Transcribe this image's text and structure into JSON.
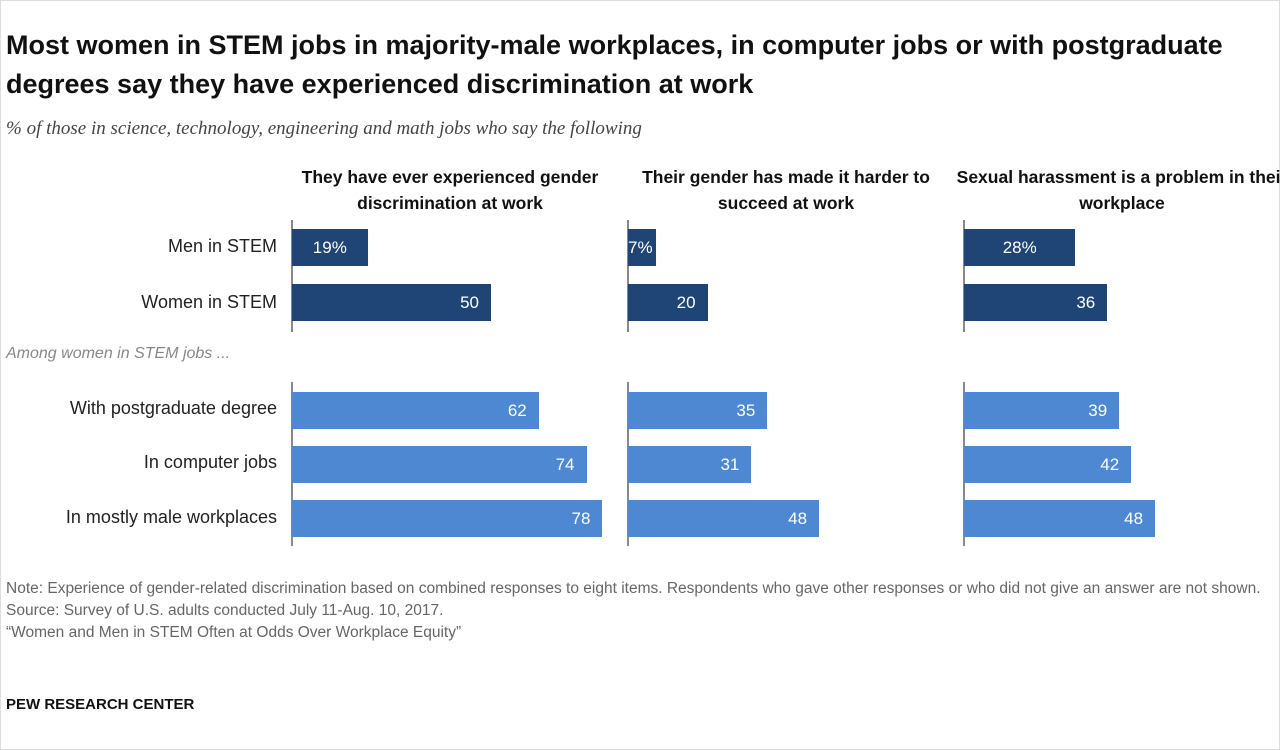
{
  "chart_data": {
    "type": "bar",
    "orientation": "horizontal",
    "title": "Most women in STEM jobs in majority-male workplaces, in computer jobs or with postgraduate degrees say they have experienced discrimination at work",
    "subtitle": "% of those in science, technology, engineering and math jobs who say the following",
    "categories": [
      "Men in STEM",
      "Women in STEM",
      "With postgraduate degree",
      "In computer jobs",
      "In mostly male workplaces"
    ],
    "group_label": "Among women in STEM jobs ...",
    "panels": [
      {
        "name": "They have ever experienced gender discrimination at work",
        "values": [
          19,
          50,
          62,
          74,
          78
        ],
        "labels": [
          "19%",
          "50",
          "62",
          "74",
          "78"
        ]
      },
      {
        "name": "Their gender has made it harder to succeed at work",
        "values": [
          7,
          20,
          35,
          31,
          48
        ],
        "labels": [
          "7%",
          "20",
          "35",
          "31",
          "48"
        ]
      },
      {
        "name": "Sexual harassment is a problem in their workplace",
        "values": [
          28,
          36,
          39,
          42,
          48
        ],
        "labels": [
          "28%",
          "36",
          "39",
          "42",
          "48"
        ]
      }
    ],
    "xlim": [
      0,
      100
    ],
    "grid": false,
    "colors": {
      "overall": "#1f4577",
      "subgroup": "#4f88d2"
    }
  },
  "notes": {
    "note": "Note: Experience of gender-related discrimination based on combined responses to eight items. Respondents who gave other responses or who did not give an answer are not shown.",
    "source": "Source: Survey of U.S. adults conducted July 11-Aug. 10, 2017.",
    "report": "“Women and Men in STEM Often at Odds Over Workplace Equity”"
  },
  "brand": "PEW RESEARCH CENTER"
}
